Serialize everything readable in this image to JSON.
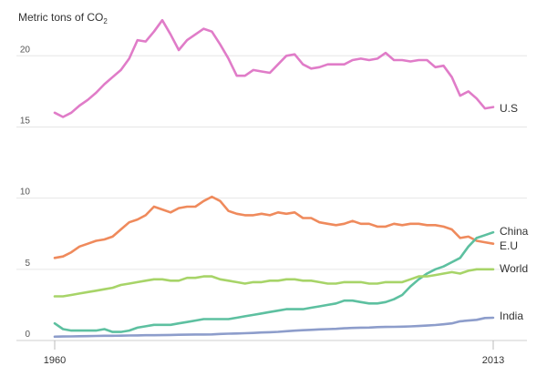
{
  "chart_data": {
    "type": "line",
    "ylabel_main": "Metric tons of CO",
    "ylabel_sub": "2",
    "xlim": [
      1960,
      2013
    ],
    "ylim": [
      0,
      22
    ],
    "yticks": [
      0,
      5,
      10,
      15,
      20
    ],
    "xtick_labels": [
      {
        "value": 1960,
        "label": "1960"
      },
      {
        "value": 2013,
        "label": "2013"
      }
    ],
    "grid": true,
    "x": [
      1960,
      1961,
      1962,
      1963,
      1964,
      1965,
      1966,
      1967,
      1968,
      1969,
      1970,
      1971,
      1972,
      1973,
      1974,
      1975,
      1976,
      1977,
      1978,
      1979,
      1980,
      1981,
      1982,
      1983,
      1984,
      1985,
      1986,
      1987,
      1988,
      1989,
      1990,
      1991,
      1992,
      1993,
      1994,
      1995,
      1996,
      1997,
      1998,
      1999,
      2000,
      2001,
      2002,
      2003,
      2004,
      2005,
      2006,
      2007,
      2008,
      2009,
      2010,
      2011,
      2012,
      2013
    ],
    "series": [
      {
        "name": "U.S",
        "color": "#e07cc8",
        "values": [
          16.0,
          15.7,
          16.0,
          16.5,
          16.9,
          17.4,
          18.0,
          18.5,
          19.0,
          19.8,
          21.1,
          21.0,
          21.7,
          22.5,
          21.5,
          20.4,
          21.1,
          21.5,
          21.9,
          21.7,
          20.8,
          19.8,
          18.6,
          18.6,
          19.0,
          18.9,
          18.8,
          19.4,
          20.0,
          20.1,
          19.4,
          19.1,
          19.2,
          19.4,
          19.4,
          19.4,
          19.7,
          19.8,
          19.7,
          19.8,
          20.2,
          19.7,
          19.7,
          19.6,
          19.7,
          19.7,
          19.2,
          19.3,
          18.5,
          17.2,
          17.5,
          17.0,
          16.3,
          16.4
        ]
      },
      {
        "name": "E.U",
        "color": "#ef8a5c",
        "values": [
          5.8,
          5.9,
          6.2,
          6.6,
          6.8,
          7.0,
          7.1,
          7.3,
          7.8,
          8.3,
          8.5,
          8.8,
          9.4,
          9.2,
          9.0,
          9.3,
          9.4,
          9.4,
          9.8,
          10.1,
          9.8,
          9.1,
          8.9,
          8.8,
          8.8,
          8.9,
          8.8,
          9.0,
          8.9,
          9.0,
          8.6,
          8.6,
          8.3,
          8.2,
          8.1,
          8.2,
          8.4,
          8.2,
          8.2,
          8.0,
          8.0,
          8.2,
          8.1,
          8.2,
          8.2,
          8.1,
          8.1,
          8.0,
          7.8,
          7.2,
          7.3,
          7.0,
          6.9,
          6.8
        ]
      },
      {
        "name": "China",
        "color": "#5dc0a0",
        "values": [
          1.2,
          0.8,
          0.7,
          0.7,
          0.7,
          0.7,
          0.8,
          0.6,
          0.6,
          0.7,
          0.9,
          1.0,
          1.1,
          1.1,
          1.1,
          1.2,
          1.3,
          1.4,
          1.5,
          1.5,
          1.5,
          1.5,
          1.6,
          1.7,
          1.8,
          1.9,
          2.0,
          2.1,
          2.2,
          2.2,
          2.2,
          2.3,
          2.4,
          2.5,
          2.6,
          2.8,
          2.8,
          2.7,
          2.6,
          2.6,
          2.7,
          2.9,
          3.2,
          3.8,
          4.3,
          4.7,
          5.0,
          5.2,
          5.5,
          5.8,
          6.6,
          7.2,
          7.4,
          7.6
        ]
      },
      {
        "name": "World",
        "color": "#a7d468",
        "values": [
          3.1,
          3.1,
          3.2,
          3.3,
          3.4,
          3.5,
          3.6,
          3.7,
          3.9,
          4.0,
          4.1,
          4.2,
          4.3,
          4.3,
          4.2,
          4.2,
          4.4,
          4.4,
          4.5,
          4.5,
          4.3,
          4.2,
          4.1,
          4.0,
          4.1,
          4.1,
          4.2,
          4.2,
          4.3,
          4.3,
          4.2,
          4.2,
          4.1,
          4.0,
          4.0,
          4.1,
          4.1,
          4.1,
          4.0,
          4.0,
          4.1,
          4.1,
          4.1,
          4.3,
          4.5,
          4.5,
          4.6,
          4.7,
          4.8,
          4.7,
          4.9,
          5.0,
          5.0,
          5.0
        ]
      },
      {
        "name": "India",
        "color": "#8d9dcb",
        "values": [
          0.27,
          0.28,
          0.29,
          0.3,
          0.31,
          0.32,
          0.33,
          0.33,
          0.34,
          0.35,
          0.36,
          0.37,
          0.37,
          0.38,
          0.39,
          0.4,
          0.41,
          0.42,
          0.42,
          0.43,
          0.46,
          0.48,
          0.49,
          0.51,
          0.53,
          0.56,
          0.58,
          0.61,
          0.65,
          0.69,
          0.72,
          0.75,
          0.78,
          0.8,
          0.82,
          0.86,
          0.88,
          0.9,
          0.91,
          0.94,
          0.95,
          0.96,
          0.97,
          0.99,
          1.02,
          1.05,
          1.09,
          1.14,
          1.2,
          1.35,
          1.4,
          1.45,
          1.58,
          1.6
        ]
      }
    ],
    "labels": {
      "us": "U.S",
      "eu": "E.U",
      "china": "China",
      "world": "World",
      "india": "India"
    }
  }
}
